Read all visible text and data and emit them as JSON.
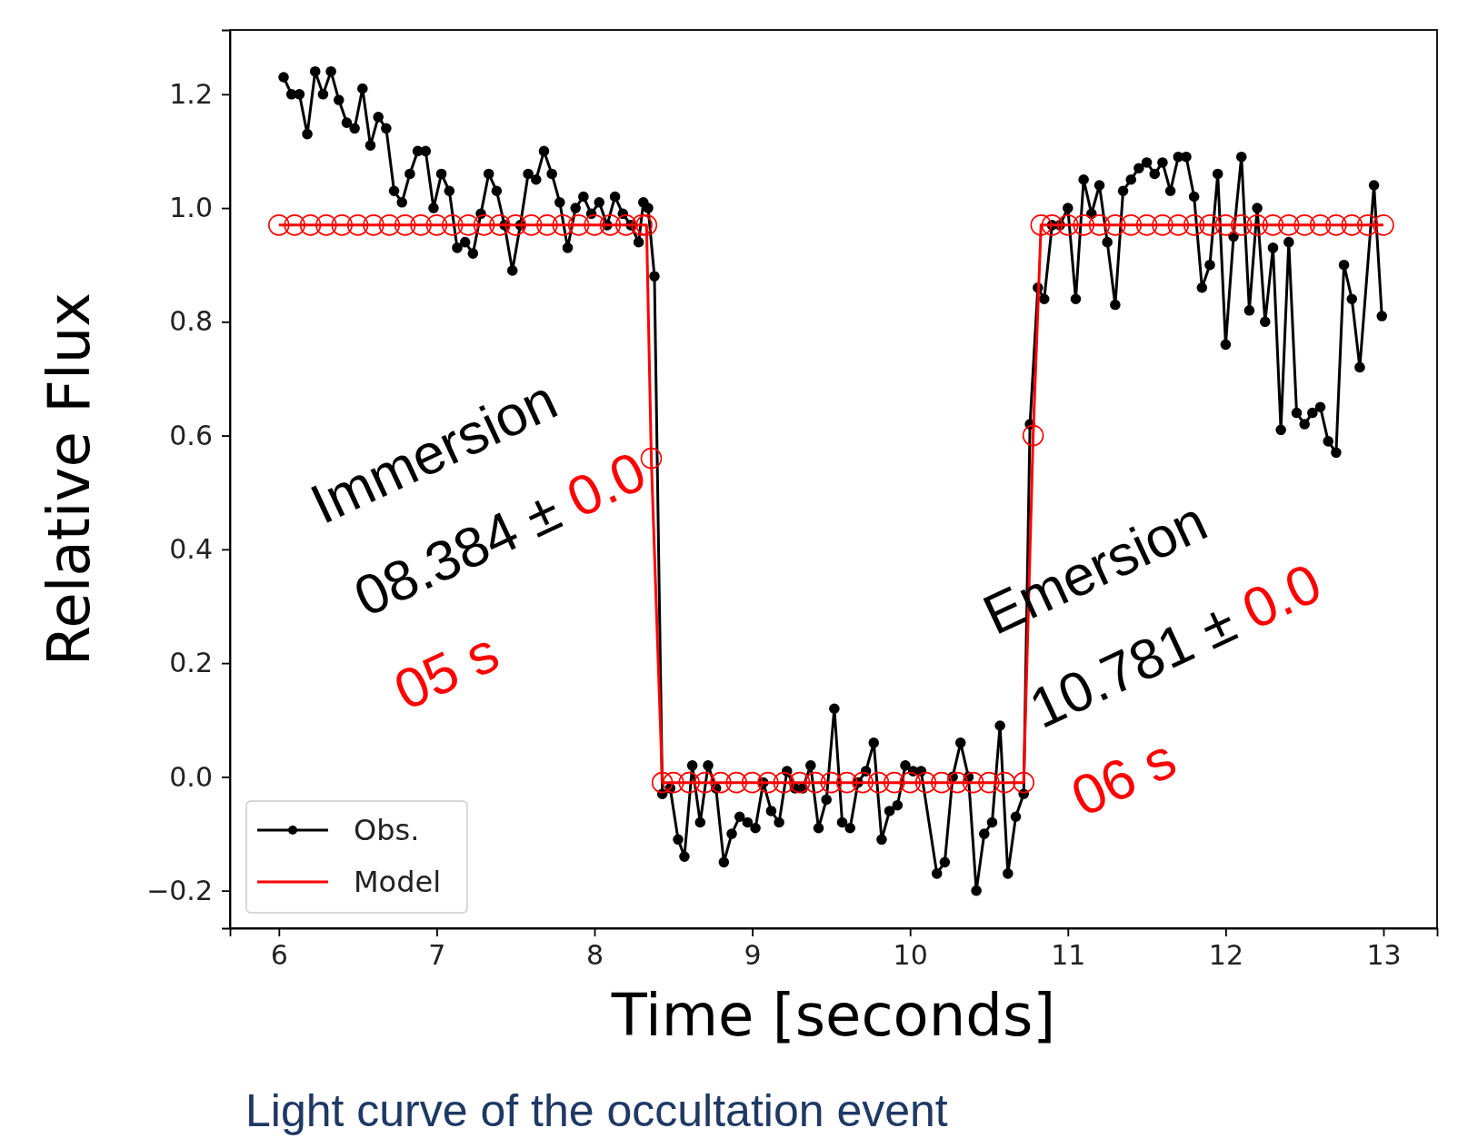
{
  "chart_data": {
    "type": "line",
    "xlabel": "Time [seconds]",
    "ylabel": "Relative Flux",
    "xlim": [
      5.69,
      13.34
    ],
    "ylim": [
      -0.266,
      1.313
    ],
    "xticks": [
      6,
      7,
      8,
      9,
      10,
      11,
      12,
      13
    ],
    "yticks": [
      {
        "value": -0.2,
        "label": "−0.2"
      },
      {
        "value": 0,
        "label": "0.0"
      },
      {
        "value": 0.2,
        "label": "0.2"
      },
      {
        "value": 0.4,
        "label": "0.4"
      },
      {
        "value": 0.6,
        "label": "0.6"
      },
      {
        "value": 0.8,
        "label": "0.8"
      },
      {
        "value": 1.0,
        "label": "1.0"
      },
      {
        "value": 1.2,
        "label": "1.2"
      }
    ],
    "grid": false,
    "legend": "bottom left",
    "marker": "circle",
    "line_style": "solid",
    "series": [
      {
        "name": "Obs.",
        "color": "#000000",
        "x": [
          6.03,
          6.08,
          6.13,
          6.18,
          6.23,
          6.28,
          6.33,
          6.38,
          6.43,
          6.48,
          6.53,
          6.58,
          6.63,
          6.68,
          6.73,
          6.78,
          6.83,
          6.88,
          6.93,
          6.98,
          7.03,
          7.08,
          7.13,
          7.18,
          7.23,
          7.28,
          7.33,
          7.38,
          7.43,
          7.48,
          7.53,
          7.58,
          7.63,
          7.68,
          7.73,
          7.78,
          7.83,
          7.88,
          7.93,
          7.98,
          8.03,
          8.08,
          8.13,
          8.18,
          8.23,
          8.28,
          8.31,
          8.34,
          8.38,
          8.43,
          8.48,
          8.53,
          8.57,
          8.62,
          8.67,
          8.72,
          8.77,
          8.82,
          8.87,
          8.92,
          8.97,
          9.02,
          9.07,
          9.12,
          9.17,
          9.22,
          9.27,
          9.32,
          9.37,
          9.42,
          9.47,
          9.52,
          9.57,
          9.62,
          9.67,
          9.72,
          9.77,
          9.82,
          9.87,
          9.92,
          9.97,
          10.02,
          10.07,
          10.17,
          10.22,
          10.27,
          10.32,
          10.37,
          10.42,
          10.47,
          10.52,
          10.57,
          10.62,
          10.67,
          10.72,
          10.76,
          10.81,
          10.85,
          10.9,
          10.95,
          11.0,
          11.05,
          11.1,
          11.15,
          11.2,
          11.25,
          11.3,
          11.35,
          11.4,
          11.45,
          11.5,
          11.55,
          11.6,
          11.65,
          11.7,
          11.75,
          11.8,
          11.85,
          11.9,
          11.95,
          12.0,
          12.05,
          12.1,
          12.15,
          12.2,
          12.25,
          12.3,
          12.35,
          12.4,
          12.45,
          12.5,
          12.55,
          12.6,
          12.65,
          12.7,
          12.75,
          12.8,
          12.85,
          12.94,
          12.99
        ],
        "values": [
          1.23,
          1.2,
          1.2,
          1.13,
          1.24,
          1.2,
          1.24,
          1.19,
          1.15,
          1.14,
          1.21,
          1.11,
          1.16,
          1.14,
          1.03,
          1.01,
          1.06,
          1.1,
          1.1,
          1.0,
          1.06,
          1.03,
          0.93,
          0.94,
          0.92,
          0.99,
          1.06,
          1.03,
          0.97,
          0.89,
          0.97,
          1.06,
          1.05,
          1.1,
          1.06,
          1.01,
          0.93,
          1.0,
          1.02,
          0.99,
          1.01,
          0.97,
          1.02,
          0.99,
          0.97,
          0.94,
          1.01,
          1.0,
          0.88,
          -0.03,
          -0.02,
          -0.11,
          -0.14,
          0.02,
          -0.08,
          0.02,
          -0.02,
          -0.15,
          -0.1,
          -0.07,
          -0.08,
          -0.09,
          -0.01,
          -0.06,
          -0.08,
          0.01,
          -0.02,
          -0.02,
          0.02,
          -0.09,
          -0.04,
          0.12,
          -0.08,
          -0.09,
          -0.01,
          0.01,
          0.06,
          -0.11,
          -0.06,
          -0.05,
          0.02,
          0.01,
          0.01,
          -0.17,
          -0.15,
          0.0,
          0.06,
          0.0,
          -0.2,
          -0.1,
          -0.08,
          0.09,
          -0.17,
          -0.07,
          -0.03,
          0.62,
          0.86,
          0.84,
          0.97,
          0.97,
          1.0,
          0.84,
          1.05,
          0.99,
          1.04,
          0.94,
          0.83,
          1.03,
          1.05,
          1.07,
          1.08,
          1.06,
          1.08,
          1.03,
          1.09,
          1.09,
          1.02,
          0.86,
          0.9,
          1.06,
          0.76,
          0.95,
          1.09,
          0.82,
          1.0,
          0.8,
          0.93,
          0.61,
          0.94,
          0.64,
          0.62,
          0.64,
          0.65,
          0.59,
          0.57,
          0.9,
          0.84,
          0.72,
          1.04,
          0.81
        ]
      },
      {
        "name": "Model",
        "color": "#ff0000",
        "x": [
          6.0,
          6.1,
          6.2,
          6.3,
          6.4,
          6.5,
          6.6,
          6.7,
          6.8,
          6.9,
          7.0,
          7.1,
          7.2,
          7.3,
          7.4,
          7.5,
          7.6,
          7.7,
          7.8,
          7.9,
          8.0,
          8.1,
          8.2,
          8.3,
          8.33,
          8.36,
          8.43,
          8.5,
          8.6,
          8.7,
          8.8,
          8.9,
          9.0,
          9.1,
          9.2,
          9.3,
          9.4,
          9.5,
          9.6,
          9.7,
          9.8,
          9.9,
          10.0,
          10.1,
          10.2,
          10.3,
          10.4,
          10.5,
          10.6,
          10.72,
          10.78,
          10.83,
          10.9,
          11.0,
          11.1,
          11.2,
          11.3,
          11.4,
          11.5,
          11.6,
          11.7,
          11.8,
          11.9,
          12.0,
          12.1,
          12.2,
          12.3,
          12.4,
          12.5,
          12.6,
          12.7,
          12.8,
          12.9,
          13.0
        ],
        "values": [
          0.97,
          0.97,
          0.97,
          0.97,
          0.97,
          0.97,
          0.97,
          0.97,
          0.97,
          0.97,
          0.97,
          0.97,
          0.97,
          0.97,
          0.97,
          0.97,
          0.97,
          0.97,
          0.97,
          0.97,
          0.97,
          0.97,
          0.97,
          0.97,
          0.97,
          0.56,
          -0.01,
          -0.01,
          -0.01,
          -0.01,
          -0.01,
          -0.01,
          -0.01,
          -0.01,
          -0.01,
          -0.01,
          -0.01,
          -0.01,
          -0.01,
          -0.01,
          -0.01,
          -0.01,
          -0.01,
          -0.01,
          -0.01,
          -0.01,
          -0.01,
          -0.01,
          -0.01,
          -0.01,
          0.6,
          0.97,
          0.97,
          0.97,
          0.97,
          0.97,
          0.97,
          0.97,
          0.97,
          0.97,
          0.97,
          0.97,
          0.97,
          0.97,
          0.97,
          0.97,
          0.97,
          0.97,
          0.97,
          0.97,
          0.97,
          0.97,
          0.97,
          0.97
        ]
      }
    ],
    "annotations": [
      "Immersion",
      "08.384 ± ",
      "0.0",
      "05 s",
      "Emersion",
      "10.781 ± ",
      "0.0",
      "06 s",
      "Light curve of the occultation event"
    ]
  }
}
